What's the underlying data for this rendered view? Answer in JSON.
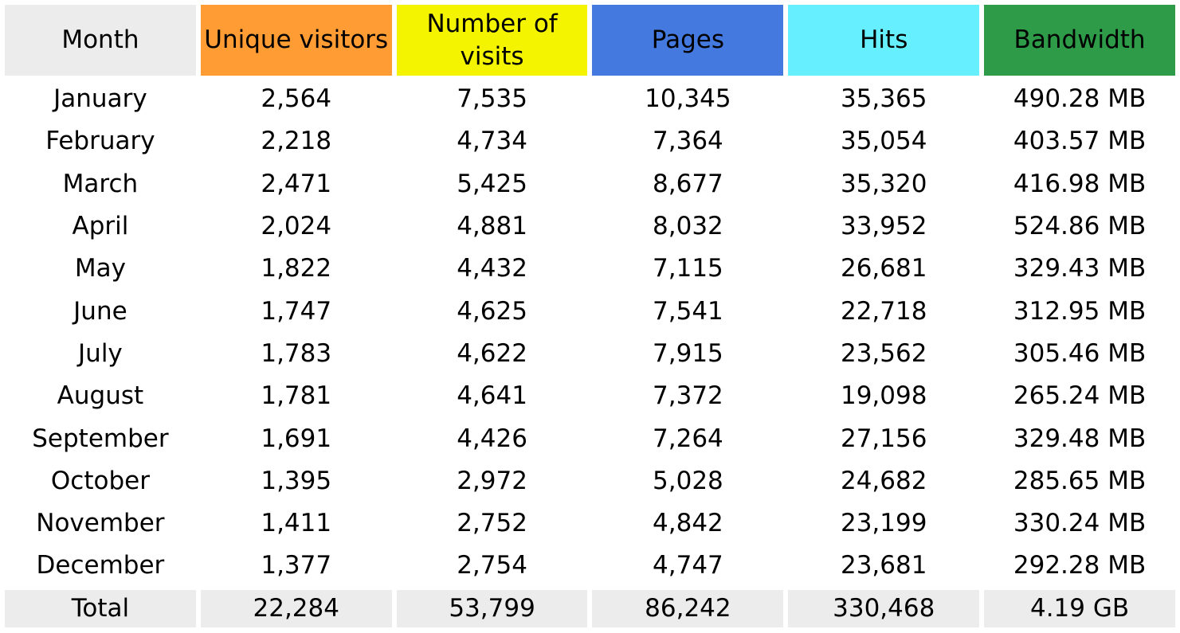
{
  "chart_data": {
    "type": "table",
    "columns": [
      {
        "key": "month",
        "label": "Month",
        "color": "#ececec"
      },
      {
        "key": "unique",
        "label": "Unique visitors",
        "color": "#ff9c33"
      },
      {
        "key": "visits",
        "label": "Number of visits",
        "color": "#f4f400"
      },
      {
        "key": "pages",
        "label": "Pages",
        "color": "#4479e0"
      },
      {
        "key": "hits",
        "label": "Hits",
        "color": "#66f0ff"
      },
      {
        "key": "bandwidth",
        "label": "Bandwidth",
        "color": "#2e9b48"
      }
    ],
    "rows": [
      {
        "month": "January",
        "unique": "2,564",
        "visits": "7,535",
        "pages": "10,345",
        "hits": "35,365",
        "bandwidth": "490.28 MB"
      },
      {
        "month": "February",
        "unique": "2,218",
        "visits": "4,734",
        "pages": "7,364",
        "hits": "35,054",
        "bandwidth": "403.57 MB"
      },
      {
        "month": "March",
        "unique": "2,471",
        "visits": "5,425",
        "pages": "8,677",
        "hits": "35,320",
        "bandwidth": "416.98 MB"
      },
      {
        "month": "April",
        "unique": "2,024",
        "visits": "4,881",
        "pages": "8,032",
        "hits": "33,952",
        "bandwidth": "524.86 MB"
      },
      {
        "month": "May",
        "unique": "1,822",
        "visits": "4,432",
        "pages": "7,115",
        "hits": "26,681",
        "bandwidth": "329.43 MB"
      },
      {
        "month": "June",
        "unique": "1,747",
        "visits": "4,625",
        "pages": "7,541",
        "hits": "22,718",
        "bandwidth": "312.95 MB"
      },
      {
        "month": "July",
        "unique": "1,783",
        "visits": "4,622",
        "pages": "7,915",
        "hits": "23,562",
        "bandwidth": "305.46 MB"
      },
      {
        "month": "August",
        "unique": "1,781",
        "visits": "4,641",
        "pages": "7,372",
        "hits": "19,098",
        "bandwidth": "265.24 MB"
      },
      {
        "month": "September",
        "unique": "1,691",
        "visits": "4,426",
        "pages": "7,264",
        "hits": "27,156",
        "bandwidth": "329.48 MB"
      },
      {
        "month": "October",
        "unique": "1,395",
        "visits": "2,972",
        "pages": "5,028",
        "hits": "24,682",
        "bandwidth": "285.65 MB"
      },
      {
        "month": "November",
        "unique": "1,411",
        "visits": "2,752",
        "pages": "4,842",
        "hits": "23,199",
        "bandwidth": "330.24 MB"
      },
      {
        "month": "December",
        "unique": "1,377",
        "visits": "2,754",
        "pages": "4,747",
        "hits": "23,681",
        "bandwidth": "292.28 MB"
      }
    ],
    "total": {
      "month": "Total",
      "unique": "22,284",
      "visits": "53,799",
      "pages": "86,242",
      "hits": "330,468",
      "bandwidth": "4.19 GB"
    }
  }
}
